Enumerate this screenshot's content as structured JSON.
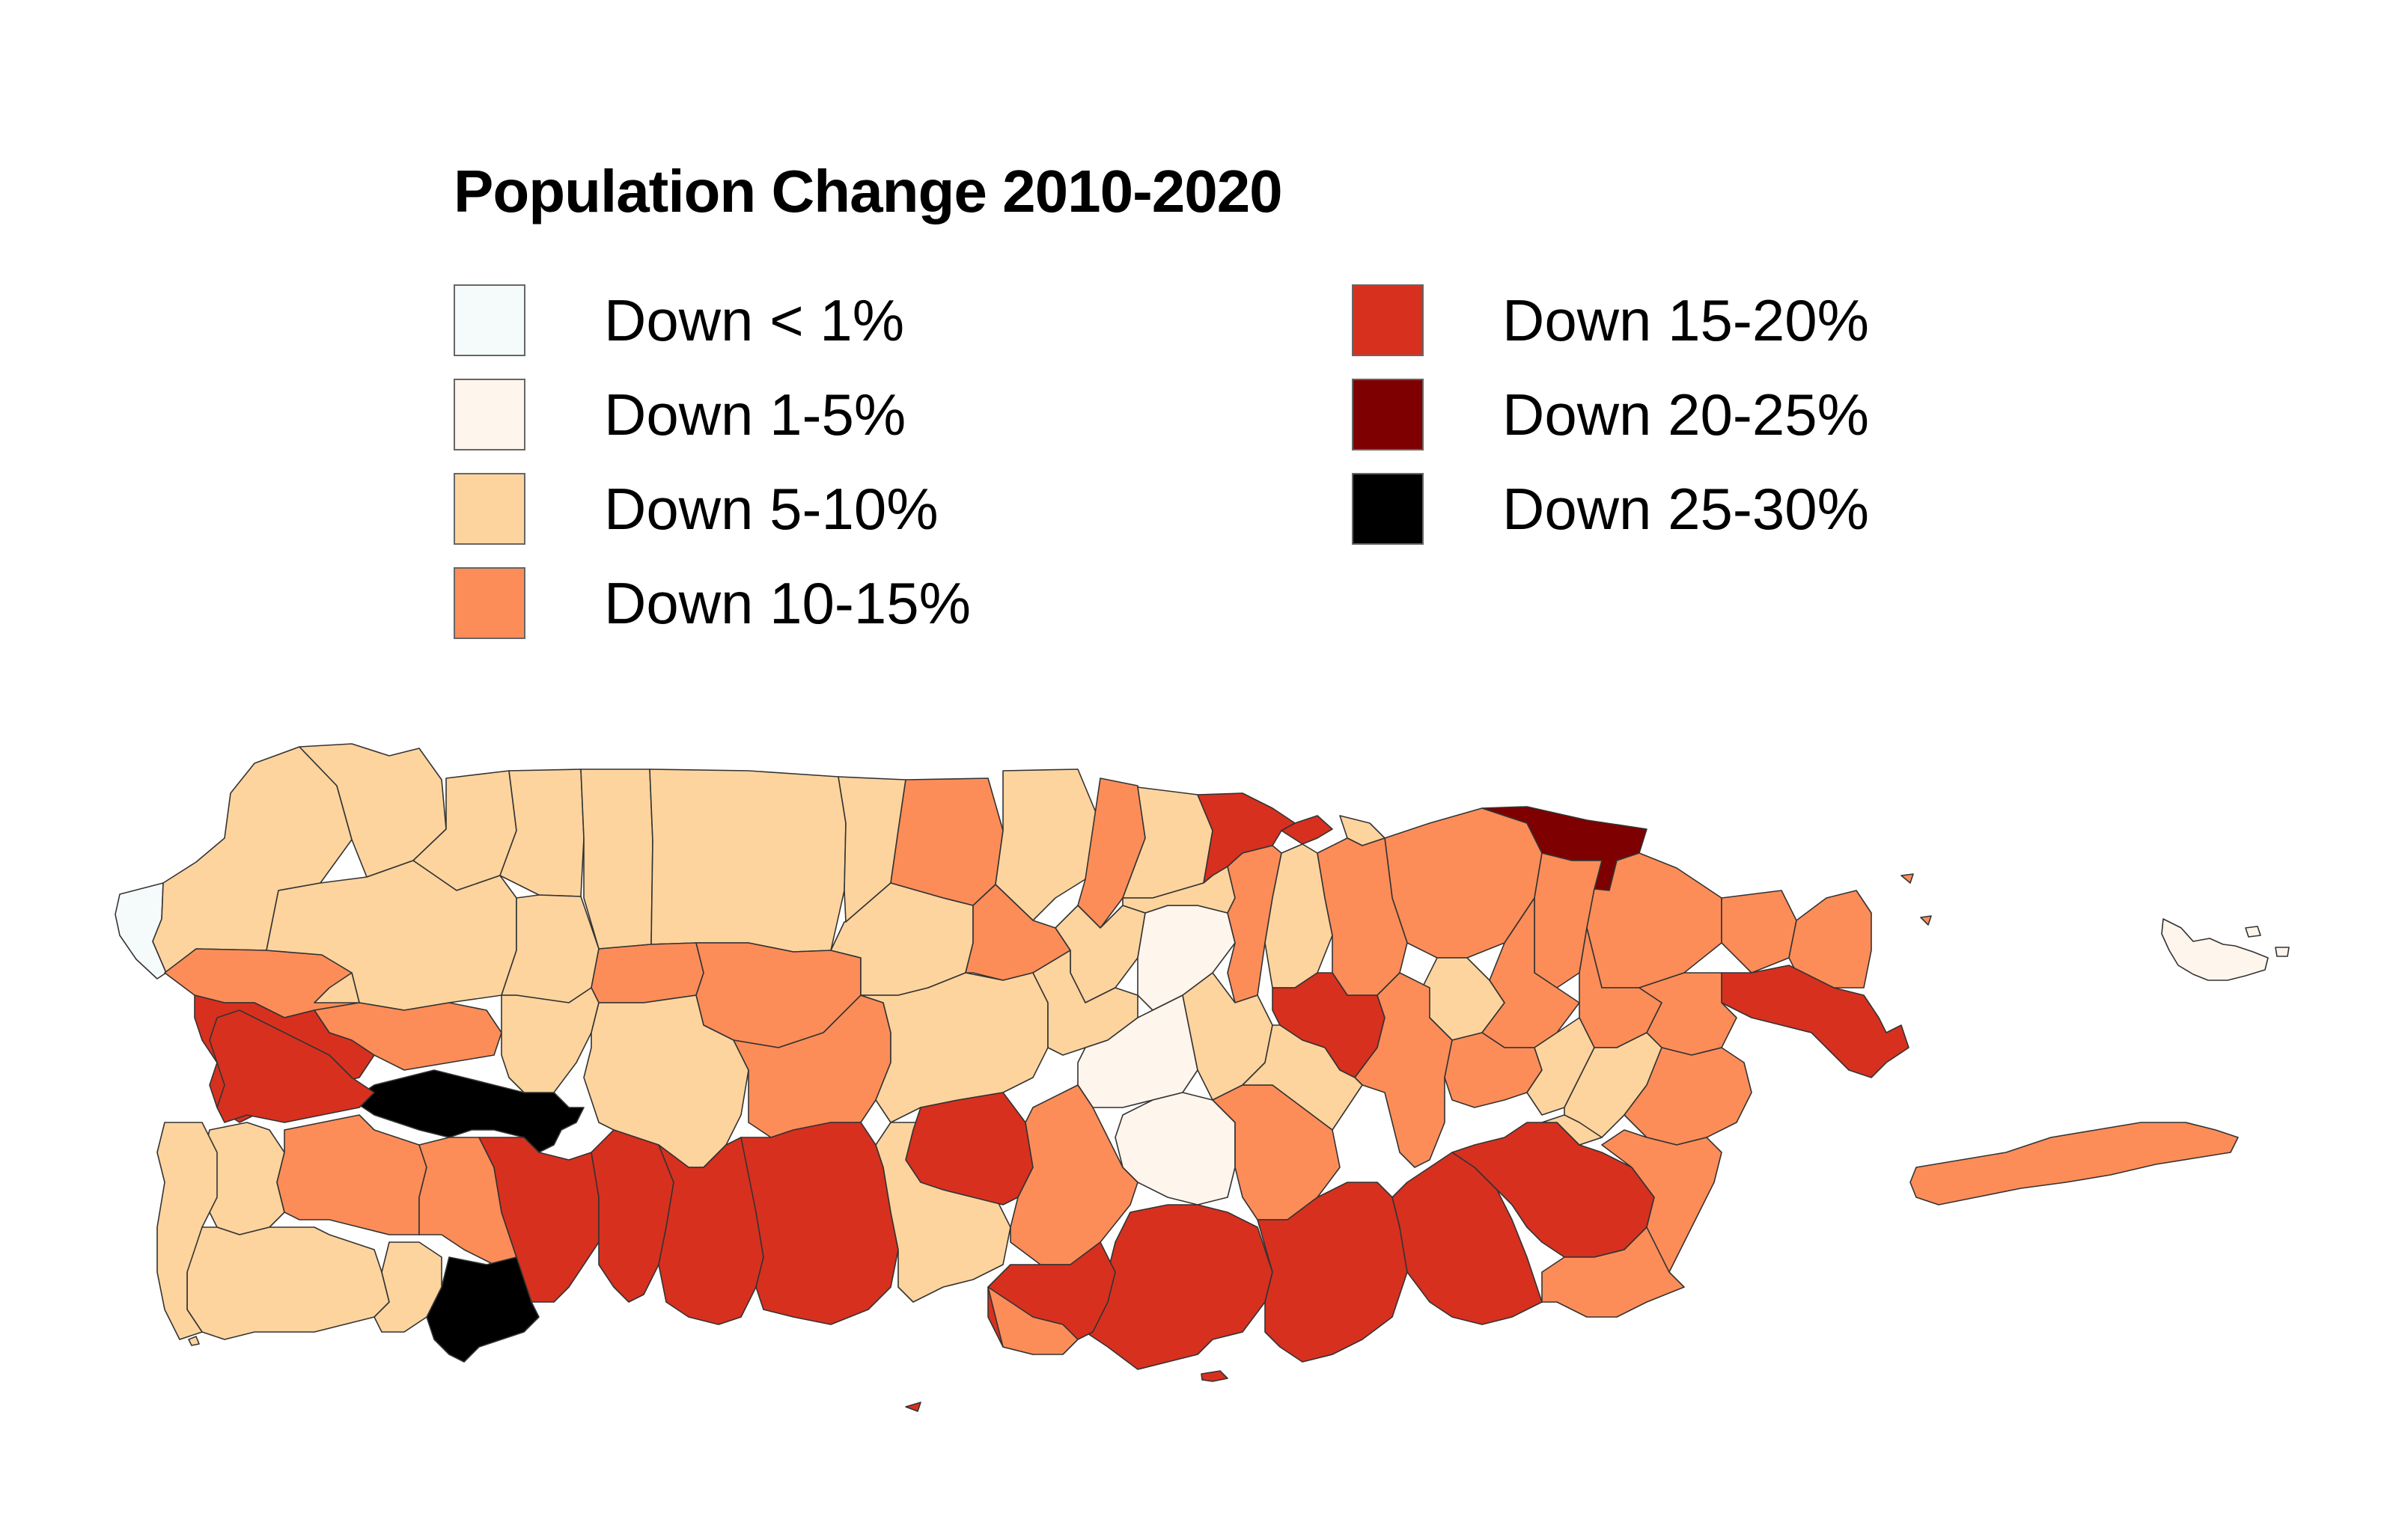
{
  "title": "Population Change 2010-2020",
  "legend": [
    {
      "label": "Down < 1%",
      "color": "#f5fbfb"
    },
    {
      "label": "Down 1-5%",
      "color": "#fef5ec"
    },
    {
      "label": "Down 5-10%",
      "color": "#fdd49e"
    },
    {
      "label": "Down 10-15%",
      "color": "#fc8d59"
    },
    {
      "label": "Down 15-20%",
      "color": "#d7301f"
    },
    {
      "label": "Down 20-25%",
      "color": "#7f0000"
    },
    {
      "label": "Down 25-30%",
      "color": "#000000"
    }
  ],
  "outline_color": "#333333"
}
